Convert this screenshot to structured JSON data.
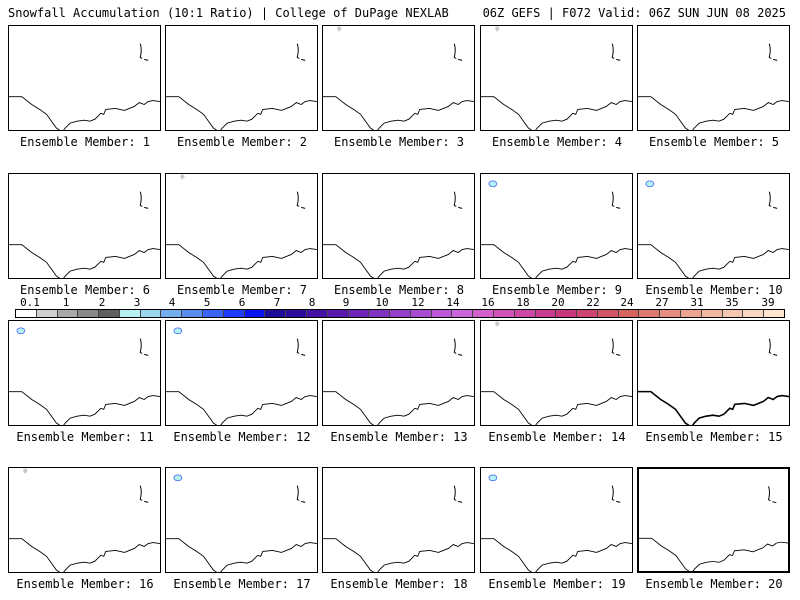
{
  "header": {
    "left": "Snowfall Accumulation (10:1 Ratio) | College of DuPage NEXLAB",
    "right": "06Z GEFS | F072 Valid: 06Z SUN JUN 08 2025"
  },
  "members": [
    {
      "label": "Ensemble Member: 1",
      "snow": []
    },
    {
      "label": "Ensemble Member: 2",
      "snow": []
    },
    {
      "label": "Ensemble Member: 3",
      "snow": [
        "gray"
      ]
    },
    {
      "label": "Ensemble Member: 4",
      "snow": [
        "gray"
      ]
    },
    {
      "label": "Ensemble Member: 5",
      "snow": []
    },
    {
      "label": "Ensemble Member: 6",
      "snow": []
    },
    {
      "label": "Ensemble Member: 7",
      "snow": [
        "gray"
      ]
    },
    {
      "label": "Ensemble Member: 8",
      "snow": []
    },
    {
      "label": "Ensemble Member: 9",
      "snow": [
        "blue"
      ]
    },
    {
      "label": "Ensemble Member: 10",
      "snow": [
        "blue"
      ]
    },
    {
      "label": "Ensemble Member: 11",
      "snow": [
        "blue"
      ]
    },
    {
      "label": "Ensemble Member: 12",
      "snow": [
        "blue"
      ]
    },
    {
      "label": "Ensemble Member: 13",
      "snow": []
    },
    {
      "label": "Ensemble Member: 14",
      "snow": [
        "gray"
      ]
    },
    {
      "label": "Ensemble Member: 15",
      "snow": []
    },
    {
      "label": "Ensemble Member: 16",
      "snow": [
        "gray"
      ]
    },
    {
      "label": "Ensemble Member: 17",
      "snow": [
        "blue"
      ]
    },
    {
      "label": "Ensemble Member: 18",
      "snow": []
    },
    {
      "label": "Ensemble Member: 19",
      "snow": [
        "blue"
      ]
    },
    {
      "label": "Ensemble Member: 20",
      "snow": []
    }
  ],
  "legend": {
    "ticks": [
      "0.1",
      "1",
      "2",
      "3",
      "4",
      "5",
      "6",
      "7",
      "8",
      "9",
      "10",
      "12",
      "14",
      "16",
      "18",
      "20",
      "22",
      "24",
      "27",
      "31",
      "35",
      "39"
    ],
    "colors": [
      "#ffffff",
      "#d0d0d0",
      "#a8a8a8",
      "#888888",
      "#606060",
      "#b6f0f0",
      "#9ad6ee",
      "#74aef0",
      "#5a8cf0",
      "#3c64f4",
      "#1e3cf8",
      "#0a14f0",
      "#1c0c98",
      "#2c0c9c",
      "#4410a4",
      "#5818ac",
      "#6e24b6",
      "#8034c0",
      "#9440c8",
      "#a84cd0",
      "#bc58d8",
      "#cc66dc",
      "#d460cc",
      "#d054b8",
      "#cc48a4",
      "#c83c90",
      "#c8387c",
      "#cc4470",
      "#d05466",
      "#d4645e",
      "#dc7a70",
      "#e48e80",
      "#eca490",
      "#f0b8a0",
      "#f4c8b0",
      "#f8d8c0",
      "#fce6d0"
    ]
  }
}
